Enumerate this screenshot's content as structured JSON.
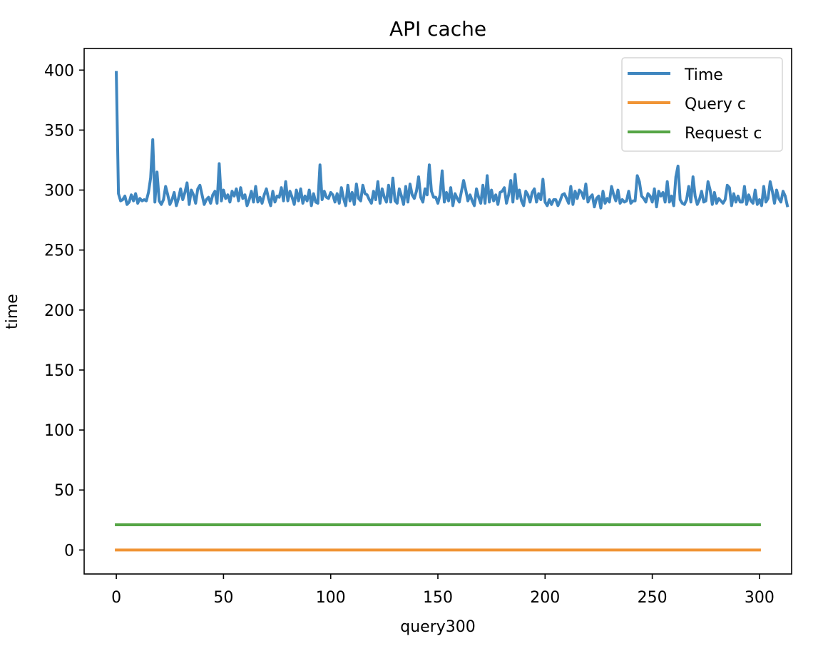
{
  "chart_data": {
    "type": "line",
    "title": "API cache",
    "xlabel": "query300",
    "ylabel": "time",
    "xlim": [
      -15,
      315
    ],
    "ylim": [
      -20,
      418
    ],
    "xticks": [
      0,
      50,
      100,
      150,
      200,
      250,
      300
    ],
    "yticks": [
      0,
      50,
      100,
      150,
      200,
      250,
      300,
      350,
      400
    ],
    "legend_position": "top-right",
    "grid": false,
    "series": [
      {
        "name": "Time",
        "color": "#3f86bf",
        "x_start": 0,
        "x_step": 1,
        "values": [
          398,
          297,
          291,
          292,
          295,
          288,
          290,
          296,
          291,
          297,
          289,
          293,
          291,
          292,
          291,
          298,
          310,
          342,
          290,
          315,
          291,
          288,
          292,
          303,
          296,
          288,
          292,
          298,
          287,
          293,
          301,
          292,
          298,
          306,
          288,
          300,
          296,
          289,
          301,
          304,
          296,
          288,
          292,
          294,
          289,
          296,
          299,
          289,
          322,
          291,
          300,
          293,
          296,
          290,
          299,
          295,
          301,
          291,
          302,
          293,
          296,
          287,
          292,
          299,
          290,
          303,
          290,
          294,
          289,
          296,
          301,
          293,
          287,
          299,
          290,
          295,
          294,
          302,
          291,
          307,
          291,
          299,
          294,
          288,
          300,
          291,
          301,
          289,
          295,
          291,
          300,
          287,
          297,
          290,
          289,
          321,
          292,
          299,
          294,
          293,
          298,
          296,
          290,
          297,
          289,
          302,
          293,
          287,
          304,
          291,
          298,
          288,
          305,
          293,
          291,
          304,
          297,
          296,
          292,
          289,
          299,
          292,
          307,
          289,
          301,
          294,
          290,
          304,
          290,
          310,
          291,
          289,
          301,
          295,
          288,
          303,
          290,
          305,
          296,
          293,
          299,
          311,
          294,
          290,
          301,
          296,
          321,
          299,
          294,
          294,
          289,
          296,
          316,
          290,
          298,
          291,
          302,
          287,
          297,
          293,
          290,
          299,
          308,
          300,
          291,
          296,
          291,
          287,
          301,
          294,
          289,
          304,
          289,
          312,
          290,
          300,
          291,
          296,
          288,
          298,
          299,
          302,
          289,
          296,
          308,
          290,
          313,
          293,
          300,
          291,
          287,
          299,
          296,
          290,
          298,
          301,
          290,
          297,
          292,
          309,
          290,
          287,
          292,
          288,
          292,
          292,
          287,
          291,
          296,
          297,
          293,
          289,
          303,
          288,
          299,
          293,
          300,
          298,
          293,
          305,
          290,
          294,
          296,
          286,
          293,
          295,
          285,
          299,
          289,
          293,
          290,
          303,
          296,
          291,
          300,
          289,
          292,
          290,
          291,
          299,
          289,
          291,
          291,
          312,
          307,
          295,
          293,
          290,
          297,
          295,
          290,
          301,
          286,
          299,
          295,
          298,
          290,
          307,
          290,
          295,
          287,
          311,
          320,
          292,
          289,
          288,
          292,
          303,
          290,
          311,
          295,
          288,
          292,
          299,
          290,
          291,
          307,
          300,
          288,
          298,
          289,
          293,
          291,
          289,
          292,
          304,
          302,
          287,
          297,
          290,
          295,
          290,
          290,
          303,
          288,
          296,
          291,
          289,
          300,
          288,
          292,
          287,
          303,
          290,
          293,
          307,
          299,
          289,
          300,
          293,
          290,
          299,
          295,
          287
        ]
      },
      {
        "name": "Query c",
        "color": "#f09435",
        "x": [
          0,
          300
        ],
        "values": [
          0,
          0
        ]
      },
      {
        "name": "Request c",
        "color": "#55a545",
        "x": [
          0,
          300
        ],
        "values": [
          21,
          21
        ]
      }
    ]
  }
}
